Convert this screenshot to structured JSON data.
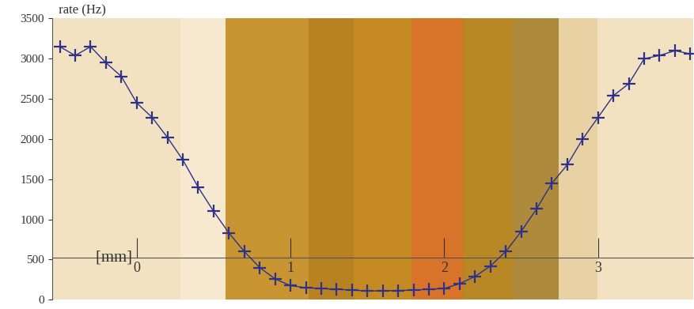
{
  "chart_data": {
    "type": "line",
    "y_label": "rate (Hz)",
    "x_label": "[mm]",
    "x": [
      -0.5,
      -0.4,
      -0.3,
      -0.2,
      -0.1,
      0.0,
      0.1,
      0.2,
      0.3,
      0.4,
      0.5,
      0.6,
      0.7,
      0.8,
      0.9,
      1.0,
      1.1,
      1.2,
      1.3,
      1.4,
      1.5,
      1.6,
      1.7,
      1.8,
      1.9,
      2.0,
      2.1,
      2.2,
      2.3,
      2.4,
      2.5,
      2.6,
      2.7,
      2.8,
      2.9,
      3.0,
      3.1,
      3.2,
      3.3,
      3.4,
      3.5,
      3.6
    ],
    "values": [
      3150,
      3040,
      3150,
      2950,
      2780,
      2450,
      2270,
      2020,
      1740,
      1400,
      1100,
      830,
      600,
      400,
      260,
      175,
      150,
      140,
      130,
      120,
      110,
      110,
      115,
      120,
      130,
      140,
      200,
      290,
      420,
      600,
      850,
      1130,
      1450,
      1680,
      2000,
      2270,
      2540,
      2690,
      3000,
      3040,
      3100,
      3060
    ],
    "color": "#2e3188",
    "marker": "plus",
    "line_style": "solid",
    "xlim": [
      -0.55,
      3.62
    ],
    "xticks": [
      0,
      1,
      2,
      3
    ],
    "ylim": [
      0,
      3500
    ],
    "yticks": [
      0,
      500,
      1000,
      1500,
      2000,
      2500,
      3000,
      3500
    ],
    "grid": false
  }
}
